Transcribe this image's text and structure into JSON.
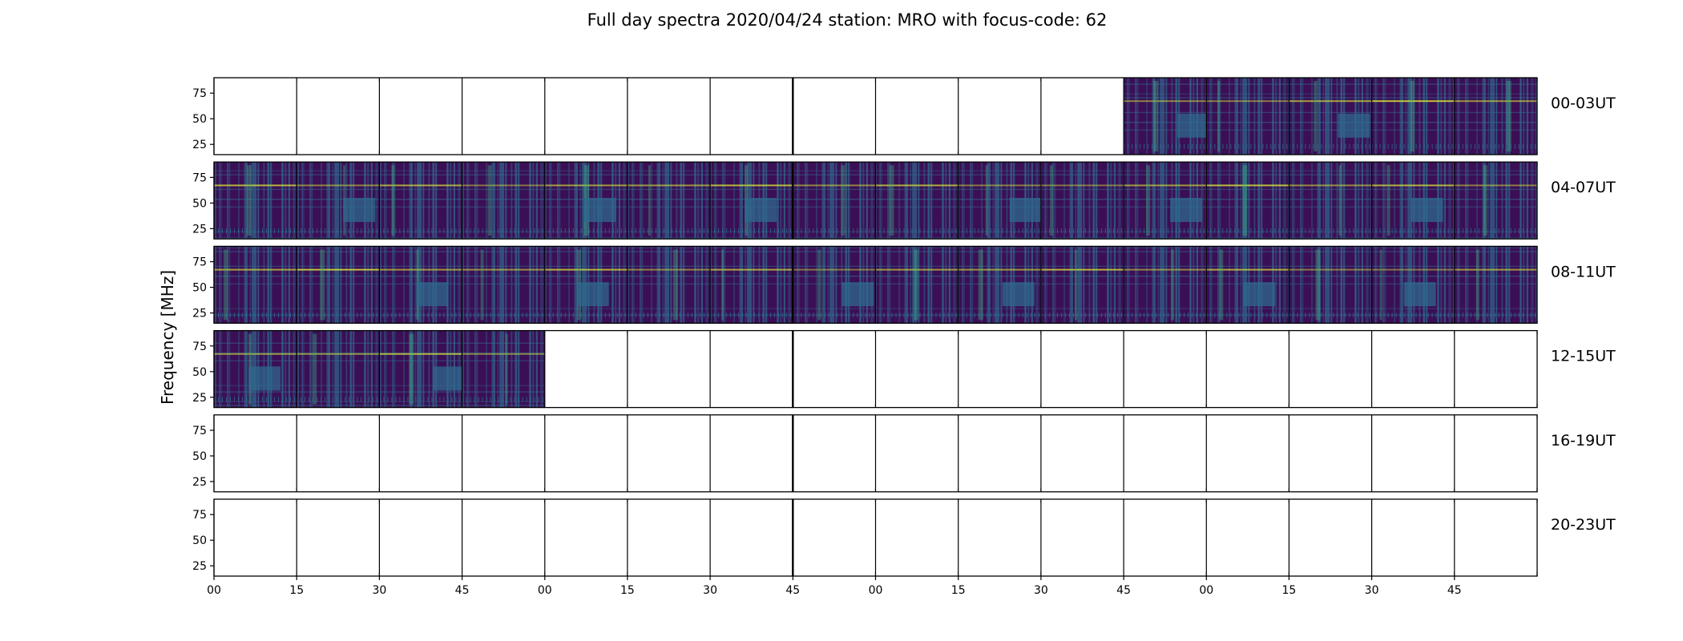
{
  "chart_data": {
    "type": "heatmap",
    "title": "Full day spectra 2020/04/24 station: MRO with focus-code: 62",
    "ylabel": "Frequency [MHz]",
    "yticks": [
      "25",
      "50",
      "75"
    ],
    "ytick_values": [
      25,
      50,
      75
    ],
    "ylim": [
      15,
      90
    ],
    "xticks": [
      "00",
      "15",
      "30",
      "45",
      "00",
      "15",
      "30",
      "45",
      "00",
      "15",
      "30",
      "45",
      "00",
      "15",
      "30",
      "45"
    ],
    "rows": [
      {
        "label": "00-03UT",
        "panels_with_data": [
          11,
          12,
          13,
          14,
          15
        ]
      },
      {
        "label": "04-07UT",
        "panels_with_data": [
          0,
          1,
          2,
          3,
          4,
          5,
          6,
          7,
          8,
          9,
          10,
          11,
          12,
          13,
          14,
          15
        ]
      },
      {
        "label": "08-11UT",
        "panels_with_data": [
          0,
          1,
          2,
          3,
          4,
          5,
          6,
          7,
          8,
          9,
          10,
          11,
          12,
          13,
          14,
          15
        ]
      },
      {
        "label": "12-15UT",
        "panels_with_data": [
          0,
          1,
          2,
          3
        ]
      },
      {
        "label": "16-19UT",
        "panels_with_data": []
      },
      {
        "label": "20-23UT",
        "panels_with_data": []
      }
    ],
    "panels_per_row": 16,
    "colormap": "viridis",
    "colors": {
      "low": "#3b0f55",
      "mid": "#2f6a8e",
      "high": "#3fc480",
      "peak": "#d9e635"
    }
  }
}
